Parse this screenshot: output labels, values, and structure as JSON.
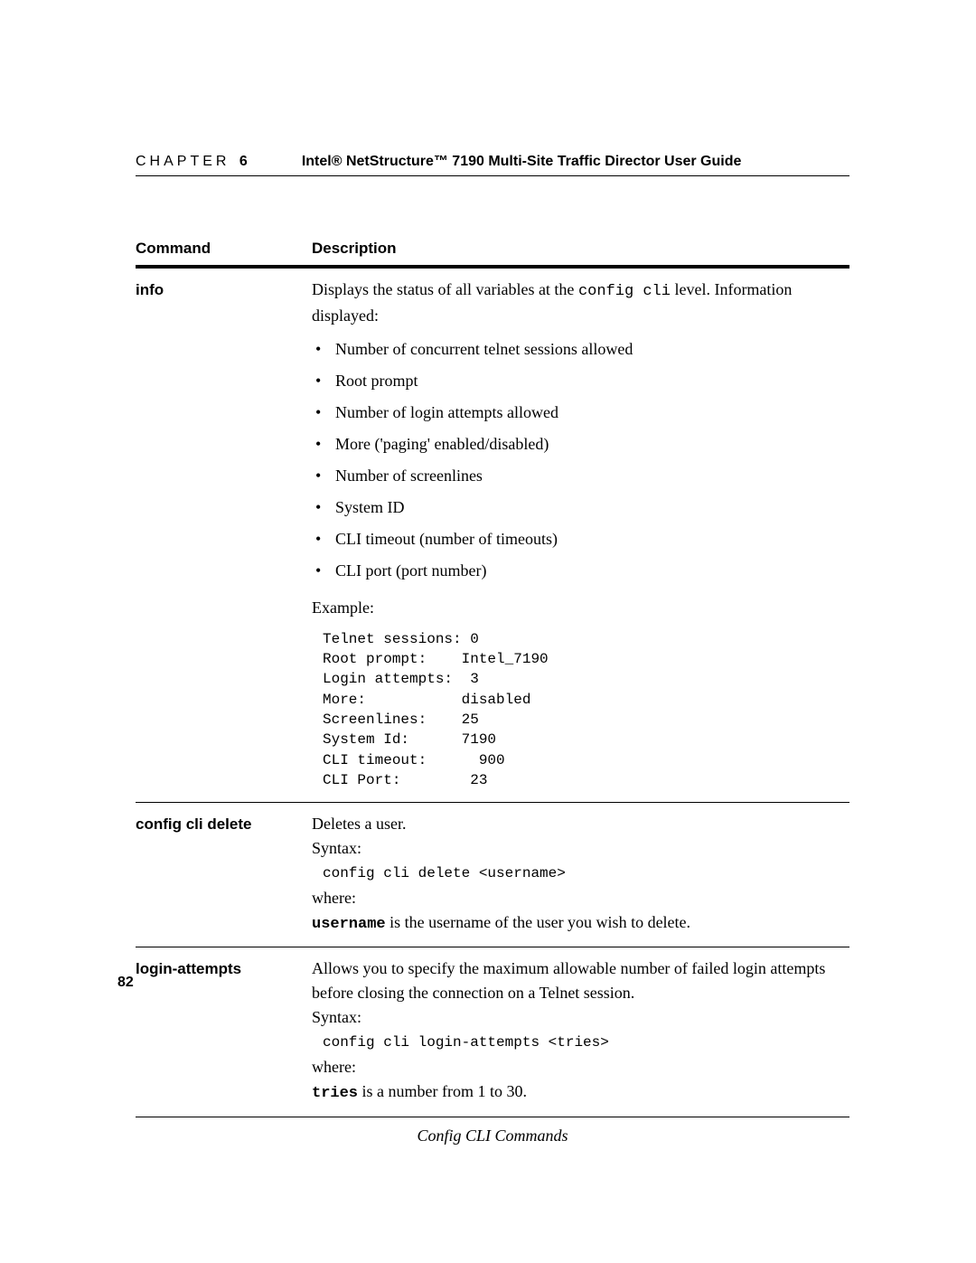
{
  "header": {
    "chapter_label": "CHAPTER",
    "chapter_number": "6",
    "doc_title": "Intel® NetStructure™ 7190 Multi-Site Traffic Director User Guide"
  },
  "table": {
    "headers": {
      "command": "Command",
      "description": "Description"
    },
    "rows": [
      {
        "command": "info",
        "intro_pre": "Displays the status of all variables at the ",
        "intro_code": "config cli",
        "intro_post": " level. Information displayed:",
        "bullets": [
          "Number of concurrent telnet sessions allowed",
          "Root prompt",
          "Number of login attempts allowed",
          "More ('paging' enabled/disabled)",
          "Number of screenlines",
          "System ID",
          "CLI timeout (number of timeouts)",
          "CLI port (port number)"
        ],
        "example_label": "Example:",
        "example_text": "Telnet sessions: 0\nRoot prompt:    Intel_7190\nLogin attempts:  3\nMore:           disabled\nScreenlines:    25\nSystem Id:      7190\nCLI timeout:      900\nCLI Port:        23"
      },
      {
        "command": "config cli delete",
        "line1": "Deletes a user.",
        "syntax_label": "Syntax:",
        "syntax_code": "config cli delete <username>",
        "where_label": "where:",
        "param_name": "username",
        "param_desc": " is the username of the user you wish to delete."
      },
      {
        "command": "login-attempts",
        "line1": "Allows you to specify the maximum allowable number of failed login attempts before closing the connection on a Telnet session.",
        "syntax_label": "Syntax:",
        "syntax_code": "config cli login-attempts <tries>",
        "where_label": "where:",
        "param_name": "tries",
        "param_desc": " is a number from 1 to 30."
      }
    ],
    "caption": "Config CLI Commands"
  },
  "page_number": "82"
}
